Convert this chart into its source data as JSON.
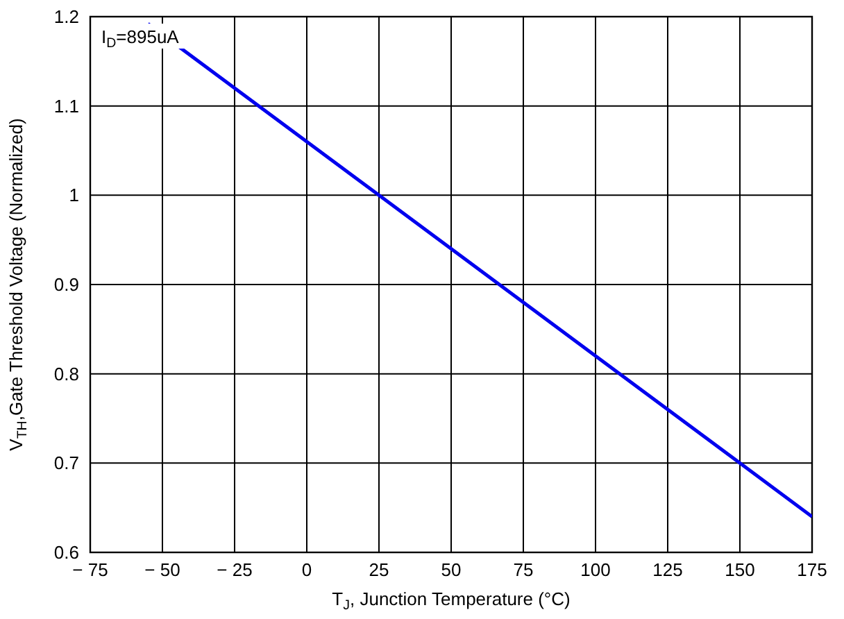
{
  "chart_data": {
    "type": "line",
    "xlabel": "T$_{J}$, Junction Temperature (°C)",
    "ylabel": "V$_{TH}$,Gate Threshold Voltage (Normalized)",
    "x": [
      -55,
      25,
      150,
      175
    ],
    "series": [
      {
        "color": "#0000ee",
        "values": [
          1.192,
          1.0,
          0.7,
          0.64
        ]
      }
    ],
    "xlim": [
      -75,
      175
    ],
    "xticks": [
      {
        "value": -75,
        "label": "− 75"
      },
      {
        "value": -50,
        "label": "− 50"
      },
      {
        "value": -25,
        "label": "− 25"
      },
      0,
      25,
      50,
      75,
      100,
      125,
      150,
      175
    ],
    "ylim": [
      0.6,
      1.2
    ],
    "yticks": [
      0.6,
      0.7,
      0.8,
      0.9,
      1,
      1.1,
      1.2
    ],
    "grid": true,
    "marker": "none",
    "line_style": "solid",
    "annotations": [
      "I$_{D}$=895uA"
    ]
  }
}
